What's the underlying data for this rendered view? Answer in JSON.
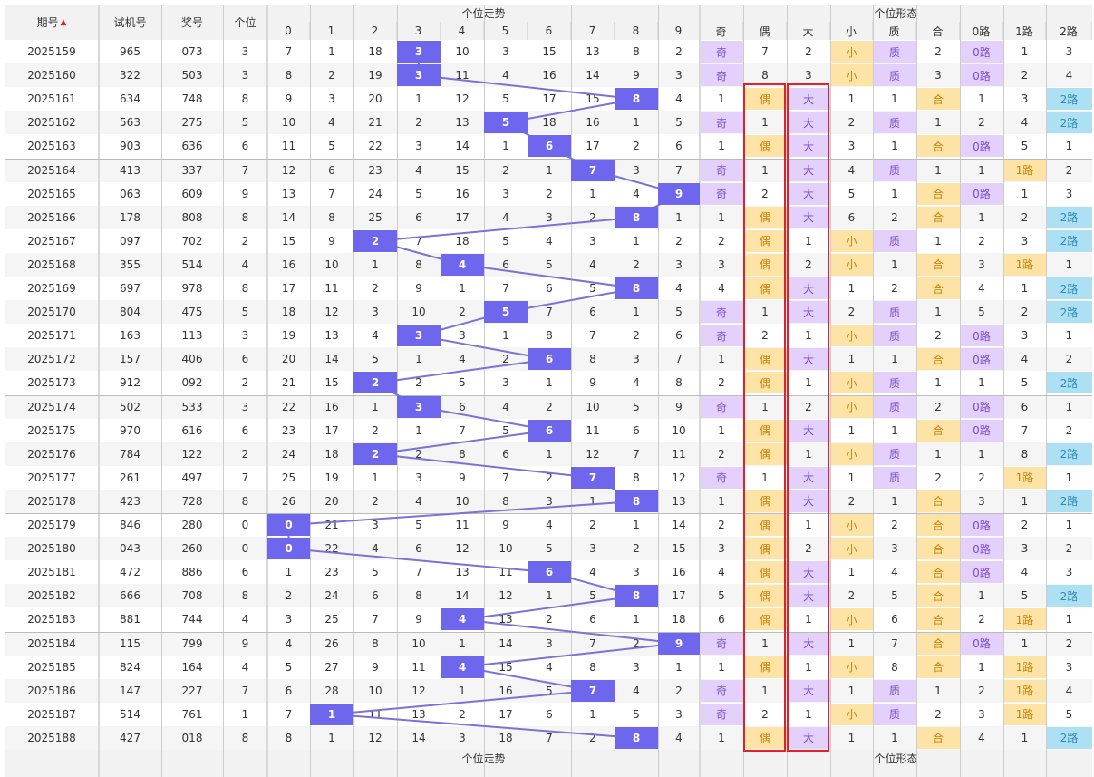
{
  "header": {
    "qihao": "期号",
    "sort_arrow": "▲",
    "shiji": "试机号",
    "jianghao": "奖号",
    "gewei": "个位",
    "zoushi_title": "个位走势",
    "xingtai_title": "个位形态",
    "digits": [
      "0",
      "1",
      "2",
      "3",
      "4",
      "5",
      "6",
      "7",
      "8",
      "9"
    ],
    "shape_cols": [
      "奇",
      "偶",
      "大",
      "小",
      "质",
      "合",
      "0路",
      "1路",
      "2路"
    ]
  },
  "footer": {
    "zoushi_title": "个位走势",
    "xingtai_title": "个位形态"
  },
  "colors": {
    "blue": "#6f66ee",
    "purple": "#e3d0fb",
    "orange": "#fde3a6",
    "cyan": "#ade0f3",
    "line": "#7b72d6",
    "redbox": "#e0202a"
  },
  "chart_data": {
    "type": "table",
    "rows": [
      {
        "issue": "2025159",
        "test": "965",
        "win": "073",
        "digit": 3,
        "miss": [
          "7",
          "1",
          "18",
          "3",
          "10",
          "3",
          "15",
          "13",
          "8",
          "2"
        ],
        "shape": [
          "奇",
          "7",
          "2",
          "小",
          "质",
          "2",
          "0路",
          "1",
          "3"
        ]
      },
      {
        "issue": "2025160",
        "test": "322",
        "win": "503",
        "digit": 3,
        "miss": [
          "8",
          "2",
          "19",
          "3",
          "11",
          "4",
          "16",
          "14",
          "9",
          "3"
        ],
        "shape": [
          "奇",
          "8",
          "3",
          "小",
          "质",
          "3",
          "0路",
          "2",
          "4"
        ]
      },
      {
        "issue": "2025161",
        "test": "634",
        "win": "748",
        "digit": 8,
        "miss": [
          "9",
          "3",
          "20",
          "1",
          "12",
          "5",
          "17",
          "15",
          "8",
          "4"
        ],
        "shape": [
          "1",
          "偶",
          "大",
          "1",
          "1",
          "合",
          "1",
          "3",
          "2路"
        ]
      },
      {
        "issue": "2025162",
        "test": "563",
        "win": "275",
        "digit": 5,
        "miss": [
          "10",
          "4",
          "21",
          "2",
          "13",
          "5",
          "18",
          "16",
          "1",
          "5"
        ],
        "shape": [
          "奇",
          "1",
          "大",
          "2",
          "质",
          "1",
          "2",
          "4",
          "2路"
        ]
      },
      {
        "issue": "2025163",
        "test": "903",
        "win": "636",
        "digit": 6,
        "miss": [
          "11",
          "5",
          "22",
          "3",
          "14",
          "1",
          "6",
          "17",
          "2",
          "6"
        ],
        "shape": [
          "1",
          "偶",
          "大",
          "3",
          "1",
          "合",
          "0路",
          "5",
          "1"
        ]
      },
      {
        "issue": "2025164",
        "test": "413",
        "win": "337",
        "digit": 7,
        "miss": [
          "12",
          "6",
          "23",
          "4",
          "15",
          "2",
          "1",
          "7",
          "3",
          "7"
        ],
        "shape": [
          "奇",
          "1",
          "大",
          "4",
          "质",
          "1",
          "1",
          "1路",
          "2"
        ]
      },
      {
        "issue": "2025165",
        "test": "063",
        "win": "609",
        "digit": 9,
        "miss": [
          "13",
          "7",
          "24",
          "5",
          "16",
          "3",
          "2",
          "1",
          "4",
          "9"
        ],
        "shape": [
          "奇",
          "2",
          "大",
          "5",
          "1",
          "合",
          "0路",
          "1",
          "3"
        ]
      },
      {
        "issue": "2025166",
        "test": "178",
        "win": "808",
        "digit": 8,
        "miss": [
          "14",
          "8",
          "25",
          "6",
          "17",
          "4",
          "3",
          "2",
          "8",
          "1"
        ],
        "shape": [
          "1",
          "偶",
          "大",
          "6",
          "2",
          "合",
          "1",
          "2",
          "2路"
        ]
      },
      {
        "issue": "2025167",
        "test": "097",
        "win": "702",
        "digit": 2,
        "miss": [
          "15",
          "9",
          "2",
          "7",
          "18",
          "5",
          "4",
          "3",
          "1",
          "2"
        ],
        "shape": [
          "2",
          "偶",
          "1",
          "小",
          "质",
          "1",
          "2",
          "3",
          "2路"
        ]
      },
      {
        "issue": "2025168",
        "test": "355",
        "win": "514",
        "digit": 4,
        "miss": [
          "16",
          "10",
          "1",
          "8",
          "4",
          "6",
          "5",
          "4",
          "2",
          "3"
        ],
        "shape": [
          "3",
          "偶",
          "2",
          "小",
          "1",
          "合",
          "3",
          "1路",
          "1"
        ]
      },
      {
        "issue": "2025169",
        "test": "697",
        "win": "978",
        "digit": 8,
        "miss": [
          "17",
          "11",
          "2",
          "9",
          "1",
          "7",
          "6",
          "5",
          "8",
          "4"
        ],
        "shape": [
          "4",
          "偶",
          "大",
          "1",
          "2",
          "合",
          "4",
          "1",
          "2路"
        ]
      },
      {
        "issue": "2025170",
        "test": "804",
        "win": "475",
        "digit": 5,
        "miss": [
          "18",
          "12",
          "3",
          "10",
          "2",
          "5",
          "7",
          "6",
          "1",
          "5"
        ],
        "shape": [
          "奇",
          "1",
          "大",
          "2",
          "质",
          "1",
          "5",
          "2",
          "2路"
        ]
      },
      {
        "issue": "2025171",
        "test": "163",
        "win": "113",
        "digit": 3,
        "miss": [
          "19",
          "13",
          "4",
          "3",
          "3",
          "1",
          "8",
          "7",
          "2",
          "6"
        ],
        "shape": [
          "奇",
          "2",
          "1",
          "小",
          "质",
          "2",
          "0路",
          "3",
          "1"
        ]
      },
      {
        "issue": "2025172",
        "test": "157",
        "win": "406",
        "digit": 6,
        "miss": [
          "20",
          "14",
          "5",
          "1",
          "4",
          "2",
          "6",
          "8",
          "3",
          "7"
        ],
        "shape": [
          "1",
          "偶",
          "大",
          "1",
          "1",
          "合",
          "0路",
          "4",
          "2"
        ]
      },
      {
        "issue": "2025173",
        "test": "912",
        "win": "092",
        "digit": 2,
        "miss": [
          "21",
          "15",
          "2",
          "2",
          "5",
          "3",
          "1",
          "9",
          "4",
          "8"
        ],
        "shape": [
          "2",
          "偶",
          "1",
          "小",
          "质",
          "1",
          "1",
          "5",
          "2路"
        ]
      },
      {
        "issue": "2025174",
        "test": "502",
        "win": "533",
        "digit": 3,
        "miss": [
          "22",
          "16",
          "1",
          "3",
          "6",
          "4",
          "2",
          "10",
          "5",
          "9"
        ],
        "shape": [
          "奇",
          "1",
          "2",
          "小",
          "质",
          "2",
          "0路",
          "6",
          "1"
        ]
      },
      {
        "issue": "2025175",
        "test": "970",
        "win": "616",
        "digit": 6,
        "miss": [
          "23",
          "17",
          "2",
          "1",
          "7",
          "5",
          "6",
          "11",
          "6",
          "10"
        ],
        "shape": [
          "1",
          "偶",
          "大",
          "1",
          "1",
          "合",
          "0路",
          "7",
          "2"
        ]
      },
      {
        "issue": "2025176",
        "test": "784",
        "win": "122",
        "digit": 2,
        "miss": [
          "24",
          "18",
          "2",
          "2",
          "8",
          "6",
          "1",
          "12",
          "7",
          "11"
        ],
        "shape": [
          "2",
          "偶",
          "1",
          "小",
          "质",
          "1",
          "1",
          "8",
          "2路"
        ]
      },
      {
        "issue": "2025177",
        "test": "261",
        "win": "497",
        "digit": 7,
        "miss": [
          "25",
          "19",
          "1",
          "3",
          "9",
          "7",
          "2",
          "7",
          "8",
          "12"
        ],
        "shape": [
          "奇",
          "1",
          "大",
          "1",
          "质",
          "2",
          "2",
          "1路",
          "1"
        ]
      },
      {
        "issue": "2025178",
        "test": "423",
        "win": "728",
        "digit": 8,
        "miss": [
          "26",
          "20",
          "2",
          "4",
          "10",
          "8",
          "3",
          "1",
          "8",
          "13"
        ],
        "shape": [
          "1",
          "偶",
          "大",
          "2",
          "1",
          "合",
          "3",
          "1",
          "2路"
        ]
      },
      {
        "issue": "2025179",
        "test": "846",
        "win": "280",
        "digit": 0,
        "miss": [
          "0",
          "21",
          "3",
          "5",
          "11",
          "9",
          "4",
          "2",
          "1",
          "14"
        ],
        "shape": [
          "2",
          "偶",
          "1",
          "小",
          "2",
          "合",
          "0路",
          "2",
          "1"
        ]
      },
      {
        "issue": "2025180",
        "test": "043",
        "win": "260",
        "digit": 0,
        "miss": [
          "0",
          "22",
          "4",
          "6",
          "12",
          "10",
          "5",
          "3",
          "2",
          "15"
        ],
        "shape": [
          "3",
          "偶",
          "2",
          "小",
          "3",
          "合",
          "0路",
          "3",
          "2"
        ]
      },
      {
        "issue": "2025181",
        "test": "472",
        "win": "886",
        "digit": 6,
        "miss": [
          "1",
          "23",
          "5",
          "7",
          "13",
          "11",
          "6",
          "4",
          "3",
          "16"
        ],
        "shape": [
          "4",
          "偶",
          "大",
          "1",
          "4",
          "合",
          "0路",
          "4",
          "3"
        ]
      },
      {
        "issue": "2025182",
        "test": "666",
        "win": "708",
        "digit": 8,
        "miss": [
          "2",
          "24",
          "6",
          "8",
          "14",
          "12",
          "1",
          "5",
          "8",
          "17"
        ],
        "shape": [
          "5",
          "偶",
          "大",
          "2",
          "5",
          "合",
          "1",
          "5",
          "2路"
        ]
      },
      {
        "issue": "2025183",
        "test": "881",
        "win": "744",
        "digit": 4,
        "miss": [
          "3",
          "25",
          "7",
          "9",
          "4",
          "13",
          "2",
          "6",
          "1",
          "18"
        ],
        "shape": [
          "6",
          "偶",
          "1",
          "小",
          "6",
          "合",
          "2",
          "1路",
          "1"
        ]
      },
      {
        "issue": "2025184",
        "test": "115",
        "win": "799",
        "digit": 9,
        "miss": [
          "4",
          "26",
          "8",
          "10",
          "1",
          "14",
          "3",
          "7",
          "2",
          "9"
        ],
        "shape": [
          "奇",
          "1",
          "大",
          "1",
          "7",
          "合",
          "0路",
          "1",
          "2"
        ]
      },
      {
        "issue": "2025185",
        "test": "824",
        "win": "164",
        "digit": 4,
        "miss": [
          "5",
          "27",
          "9",
          "11",
          "4",
          "15",
          "4",
          "8",
          "3",
          "1"
        ],
        "shape": [
          "1",
          "偶",
          "1",
          "小",
          "8",
          "合",
          "1",
          "1路",
          "3"
        ]
      },
      {
        "issue": "2025186",
        "test": "147",
        "win": "227",
        "digit": 7,
        "miss": [
          "6",
          "28",
          "10",
          "12",
          "1",
          "16",
          "5",
          "7",
          "4",
          "2"
        ],
        "shape": [
          "奇",
          "1",
          "大",
          "1",
          "质",
          "1",
          "2",
          "1路",
          "4"
        ]
      },
      {
        "issue": "2025187",
        "test": "514",
        "win": "761",
        "digit": 1,
        "miss": [
          "7",
          "1",
          "11",
          "13",
          "2",
          "17",
          "6",
          "1",
          "5",
          "3"
        ],
        "shape": [
          "奇",
          "2",
          "1",
          "小",
          "质",
          "2",
          "3",
          "1路",
          "5"
        ]
      },
      {
        "issue": "2025188",
        "test": "427",
        "win": "018",
        "digit": 8,
        "miss": [
          "8",
          "1",
          "12",
          "14",
          "3",
          "18",
          "7",
          "2",
          "8",
          "4"
        ],
        "shape": [
          "1",
          "偶",
          "大",
          "1",
          "1",
          "合",
          "4",
          "1",
          "2路"
        ]
      }
    ]
  }
}
